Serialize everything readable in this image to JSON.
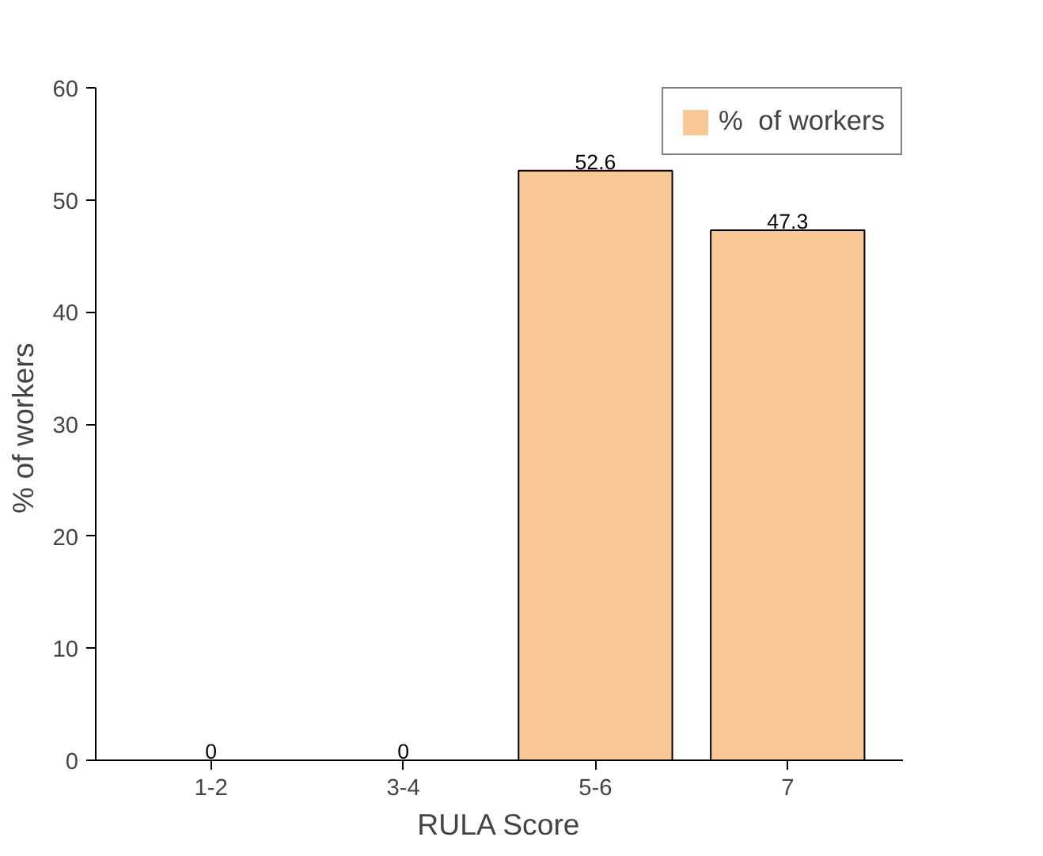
{
  "chart_data": {
    "type": "bar",
    "xlabel": "RULA Score",
    "ylabel": "%  of workers",
    "categories": [
      "1-2",
      "3-4",
      "5-6",
      "7"
    ],
    "series": [
      {
        "name": "%  of workers",
        "color": "#fac896",
        "values": [
          0,
          0,
          52.6,
          47.3
        ]
      }
    ],
    "ylim": [
      0,
      60
    ],
    "yticks": [
      0,
      10,
      20,
      30,
      40,
      50,
      60
    ],
    "data_labels": true,
    "legend": "top right",
    "grid": false
  }
}
